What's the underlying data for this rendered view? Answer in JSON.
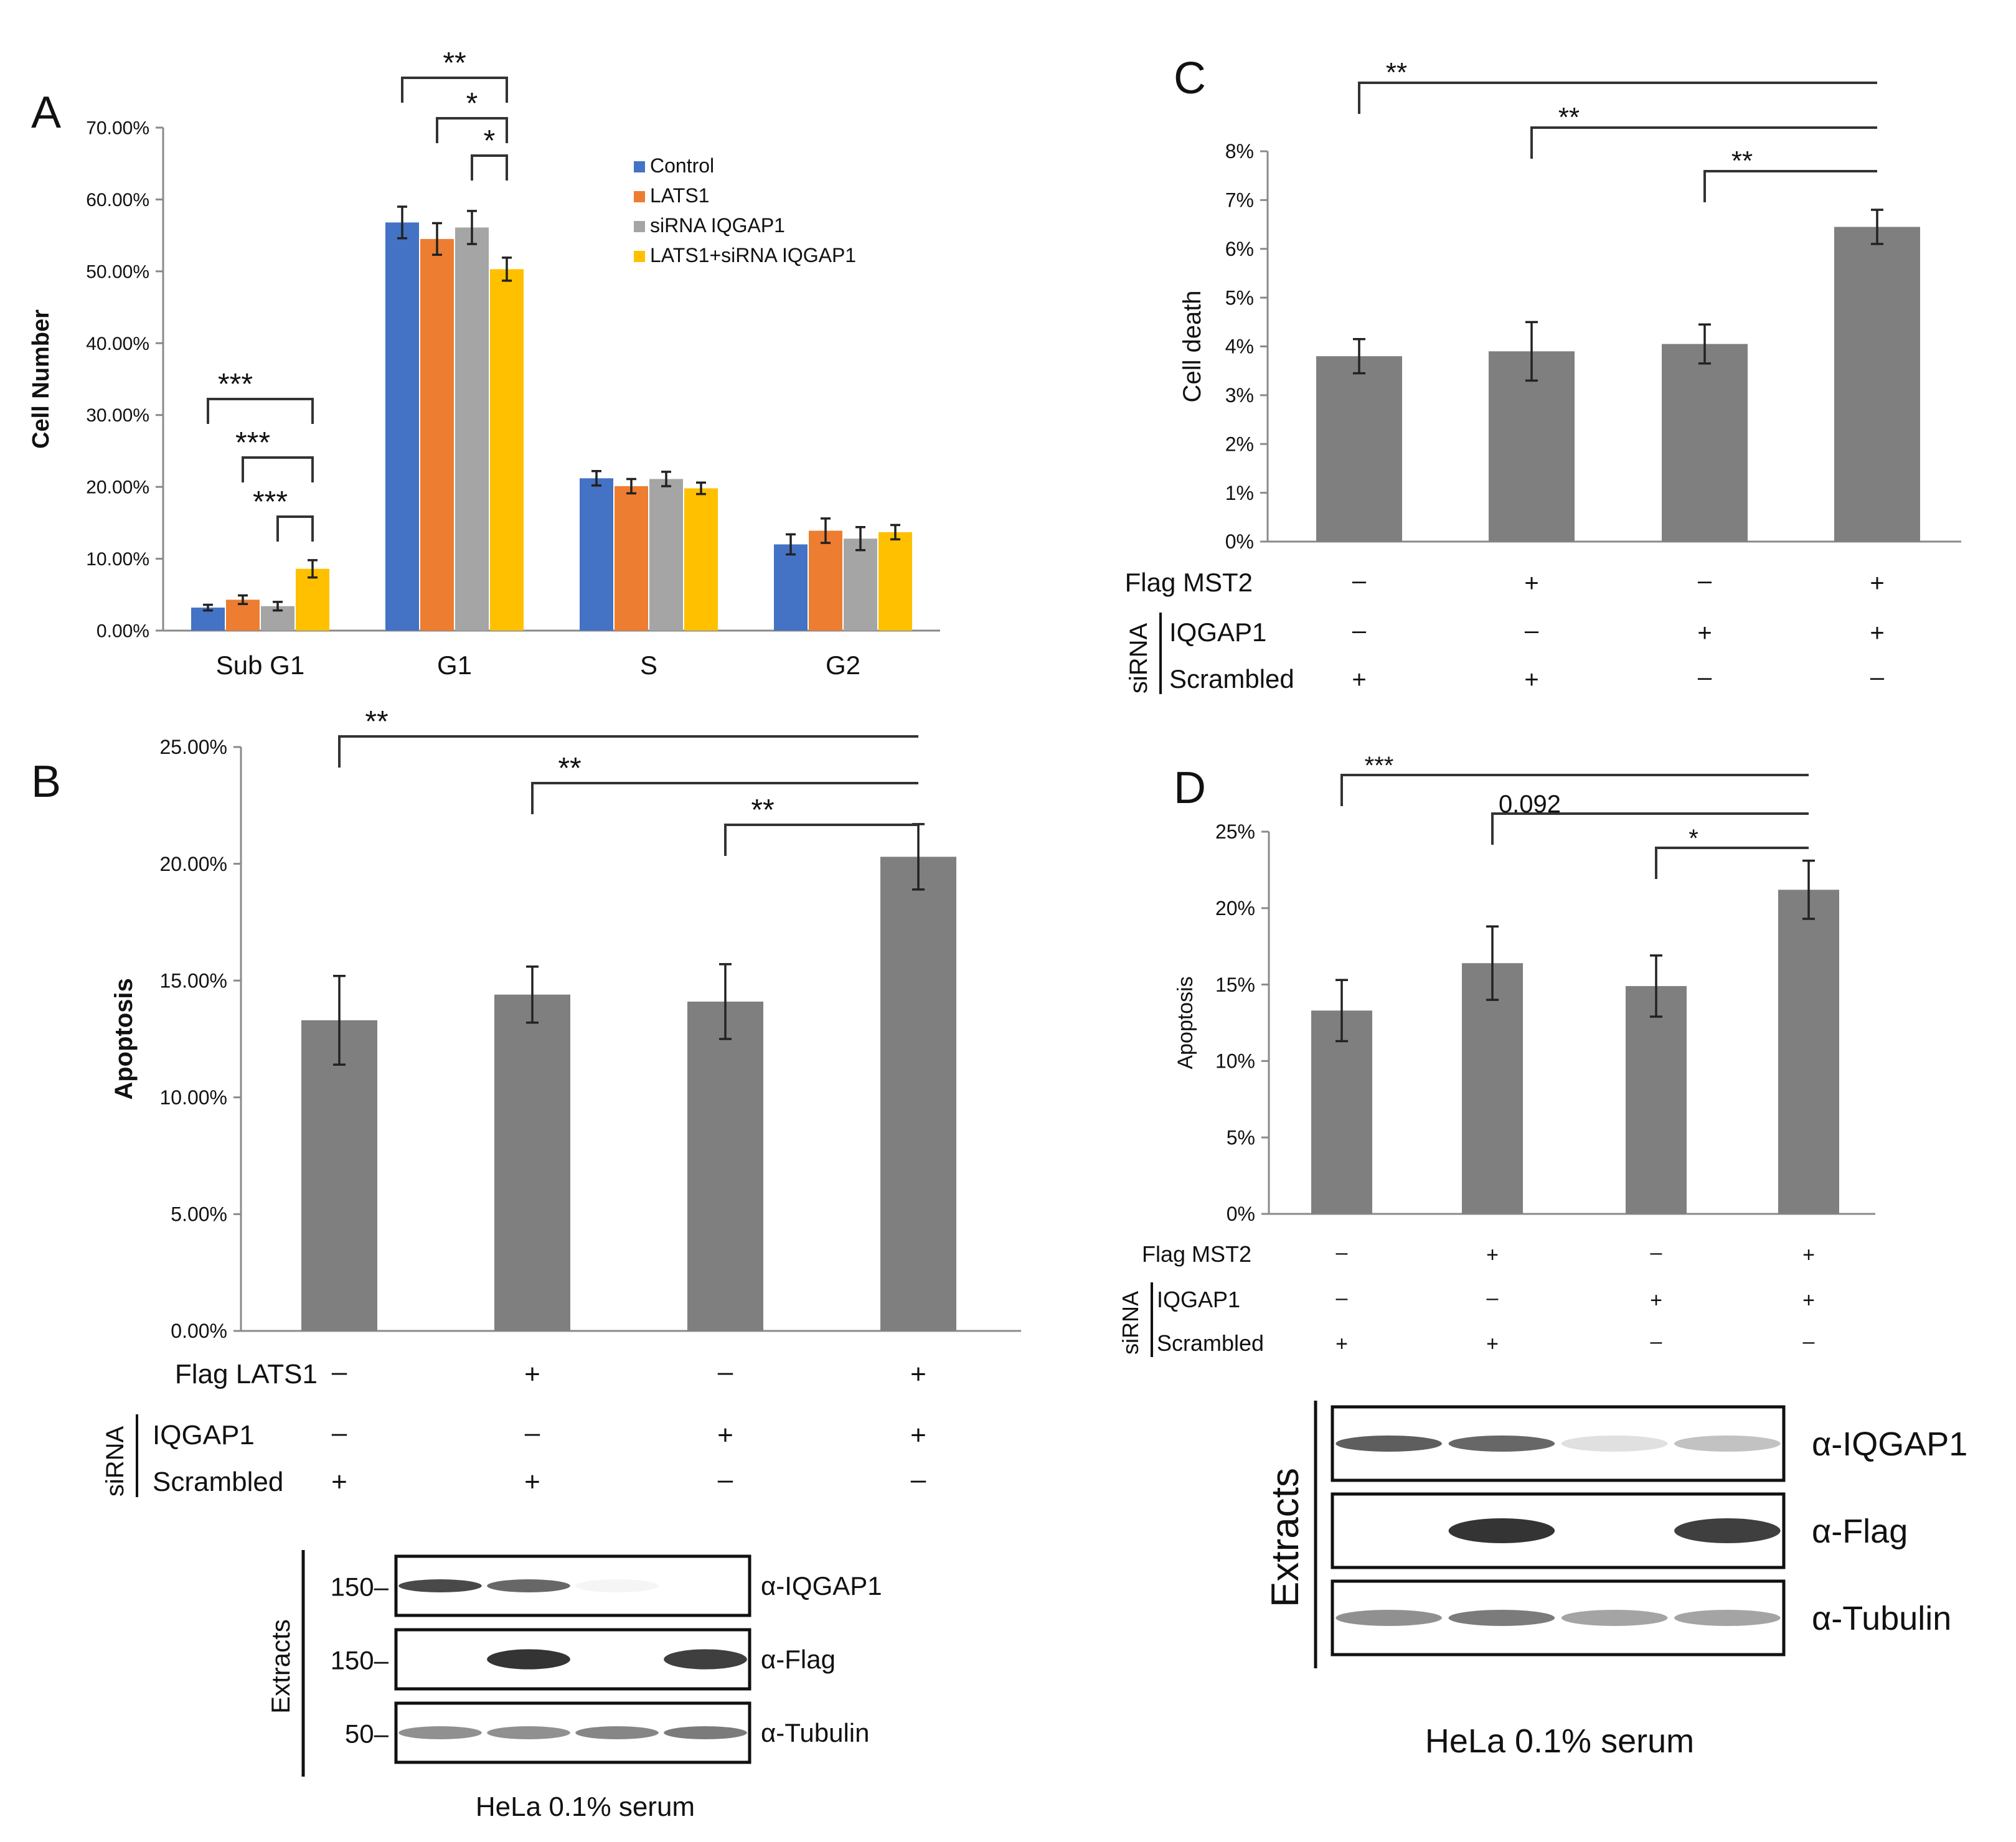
{
  "panels": {
    "a": "A",
    "b": "B",
    "c": "C",
    "d": "D"
  },
  "colors": {
    "blue": "#4472C4",
    "orange": "#ED7D31",
    "gray": "#A5A5A5",
    "yellow": "#FFC000",
    "bar": "#7F7F7F"
  },
  "chart_data": [
    {
      "panel": "A",
      "type": "bar",
      "ylabel": "Cell Number",
      "ylim": [
        0,
        70
      ],
      "yticks": [
        "0.00%",
        "10.00%",
        "20.00%",
        "30.00%",
        "40.00%",
        "50.00%",
        "60.00%",
        "70.00%"
      ],
      "categories": [
        "Sub G1",
        "G1",
        "S",
        "G2"
      ],
      "legend_position": "top-right",
      "series": [
        {
          "name": "Control",
          "color": "#4472C4",
          "values": [
            3.2,
            56.8,
            21.2,
            12.0
          ],
          "errors": [
            0.4,
            2.2,
            1.0,
            1.4
          ]
        },
        {
          "name": "LATS1",
          "color": "#ED7D31",
          "values": [
            4.3,
            54.5,
            20.1,
            13.9
          ],
          "errors": [
            0.6,
            2.2,
            1.0,
            1.7
          ]
        },
        {
          "name": "siRNA IQGAP1",
          "color": "#A5A5A5",
          "values": [
            3.4,
            56.1,
            21.1,
            12.8
          ],
          "errors": [
            0.6,
            2.3,
            1.0,
            1.6
          ]
        },
        {
          "name": "LATS1+siRNA IQGAP1",
          "color": "#FFC000",
          "values": [
            8.6,
            50.3,
            19.8,
            13.7
          ],
          "errors": [
            1.2,
            1.6,
            0.8,
            1.0
          ]
        }
      ],
      "significance": [
        {
          "label": "***",
          "from": [
            0,
            0
          ],
          "to": [
            0,
            3
          ]
        },
        {
          "label": "***",
          "from": [
            0,
            1
          ],
          "to": [
            0,
            3
          ]
        },
        {
          "label": "***",
          "from": [
            0,
            2
          ],
          "to": [
            0,
            3
          ]
        },
        {
          "label": "**",
          "from": [
            1,
            0
          ],
          "to": [
            1,
            3
          ]
        },
        {
          "label": "*",
          "from": [
            1,
            1
          ],
          "to": [
            1,
            3
          ]
        },
        {
          "label": "*",
          "from": [
            1,
            2
          ],
          "to": [
            1,
            3
          ]
        }
      ]
    },
    {
      "panel": "B",
      "type": "bar",
      "ylabel": "Apoptosis",
      "ylim": [
        0,
        25
      ],
      "yticks": [
        "0.00%",
        "5.00%",
        "10.00%",
        "15.00%",
        "20.00%",
        "25.00%"
      ],
      "values": [
        13.3,
        14.4,
        14.1,
        20.3
      ],
      "errors": [
        1.9,
        1.2,
        1.6,
        1.4
      ],
      "significance": [
        {
          "label": "**",
          "from": 0,
          "to": 3
        },
        {
          "label": "**",
          "from": 1,
          "to": 3
        },
        {
          "label": "**",
          "from": 2,
          "to": 3
        }
      ],
      "conditions": {
        "group_label": "siRNA",
        "rows": [
          {
            "label": "Flag LATS1",
            "marks": [
              "–",
              "+",
              "–",
              "+"
            ]
          },
          {
            "label": "IQGAP1",
            "marks": [
              "–",
              "–",
              "+",
              "+"
            ]
          },
          {
            "label": "Scrambled",
            "marks": [
              "+",
              "+",
              "–",
              "–"
            ]
          }
        ]
      }
    },
    {
      "panel": "C",
      "type": "bar",
      "ylabel": "Cell death",
      "ylim": [
        0,
        8
      ],
      "yticks": [
        "0%",
        "1%",
        "2%",
        "3%",
        "4%",
        "5%",
        "6%",
        "7%",
        "8%"
      ],
      "values": [
        3.8,
        3.9,
        4.05,
        6.45
      ],
      "errors": [
        0.35,
        0.6,
        0.4,
        0.35
      ],
      "significance": [
        {
          "label": "**",
          "from": 0,
          "to": 3
        },
        {
          "label": "**",
          "from": 1,
          "to": 3
        },
        {
          "label": "**",
          "from": 2,
          "to": 3
        }
      ],
      "conditions": {
        "group_label": "siRNA",
        "rows": [
          {
            "label": "Flag MST2",
            "marks": [
              "–",
              "+",
              "–",
              "+"
            ]
          },
          {
            "label": "IQGAP1",
            "marks": [
              "–",
              "–",
              "+",
              "+"
            ]
          },
          {
            "label": "Scrambled",
            "marks": [
              "+",
              "+",
              "–",
              "–"
            ]
          }
        ]
      }
    },
    {
      "panel": "D",
      "type": "bar",
      "ylabel": "Apoptosis",
      "ylim": [
        0,
        25
      ],
      "yticks": [
        "0%",
        "5%",
        "10%",
        "15%",
        "20%",
        "25%"
      ],
      "values": [
        13.3,
        16.4,
        14.9,
        21.2
      ],
      "errors": [
        2.0,
        2.4,
        2.0,
        1.9
      ],
      "significance": [
        {
          "label": "***",
          "from": 0,
          "to": 3
        },
        {
          "label": "0.092",
          "from": 1,
          "to": 3
        },
        {
          "label": "*",
          "from": 2,
          "to": 3
        }
      ],
      "conditions": {
        "group_label": "siRNA",
        "rows": [
          {
            "label": "Flag MST2",
            "marks": [
              "–",
              "+",
              "–",
              "+"
            ]
          },
          {
            "label": "IQGAP1",
            "marks": [
              "–",
              "–",
              "+",
              "+"
            ]
          },
          {
            "label": "Scrambled",
            "marks": [
              "+",
              "+",
              "–",
              "–"
            ]
          }
        ]
      }
    }
  ],
  "blots": {
    "b": {
      "side_label": "Extracts",
      "rows": [
        {
          "marker": "150–",
          "label": "α-IQGAP1",
          "intensities": [
            0.9,
            0.75,
            0.05,
            0.0
          ]
        },
        {
          "marker": "150–",
          "label": "α-Flag",
          "intensities": [
            0.0,
            1.0,
            0.0,
            0.95
          ]
        },
        {
          "marker": "50–",
          "label": "α-Tubulin",
          "intensities": [
            0.55,
            0.55,
            0.6,
            0.65
          ]
        }
      ],
      "caption": "HeLa 0.1% serum"
    },
    "d": {
      "side_label": "Extracts",
      "rows": [
        {
          "label": "α-IQGAP1",
          "intensities": [
            0.8,
            0.75,
            0.15,
            0.3
          ]
        },
        {
          "label": "α-Flag",
          "intensities": [
            0.0,
            1.0,
            0.0,
            0.95
          ]
        },
        {
          "label": "α-Tubulin",
          "intensities": [
            0.55,
            0.65,
            0.45,
            0.45
          ]
        }
      ],
      "caption": "HeLa 0.1% serum"
    }
  }
}
